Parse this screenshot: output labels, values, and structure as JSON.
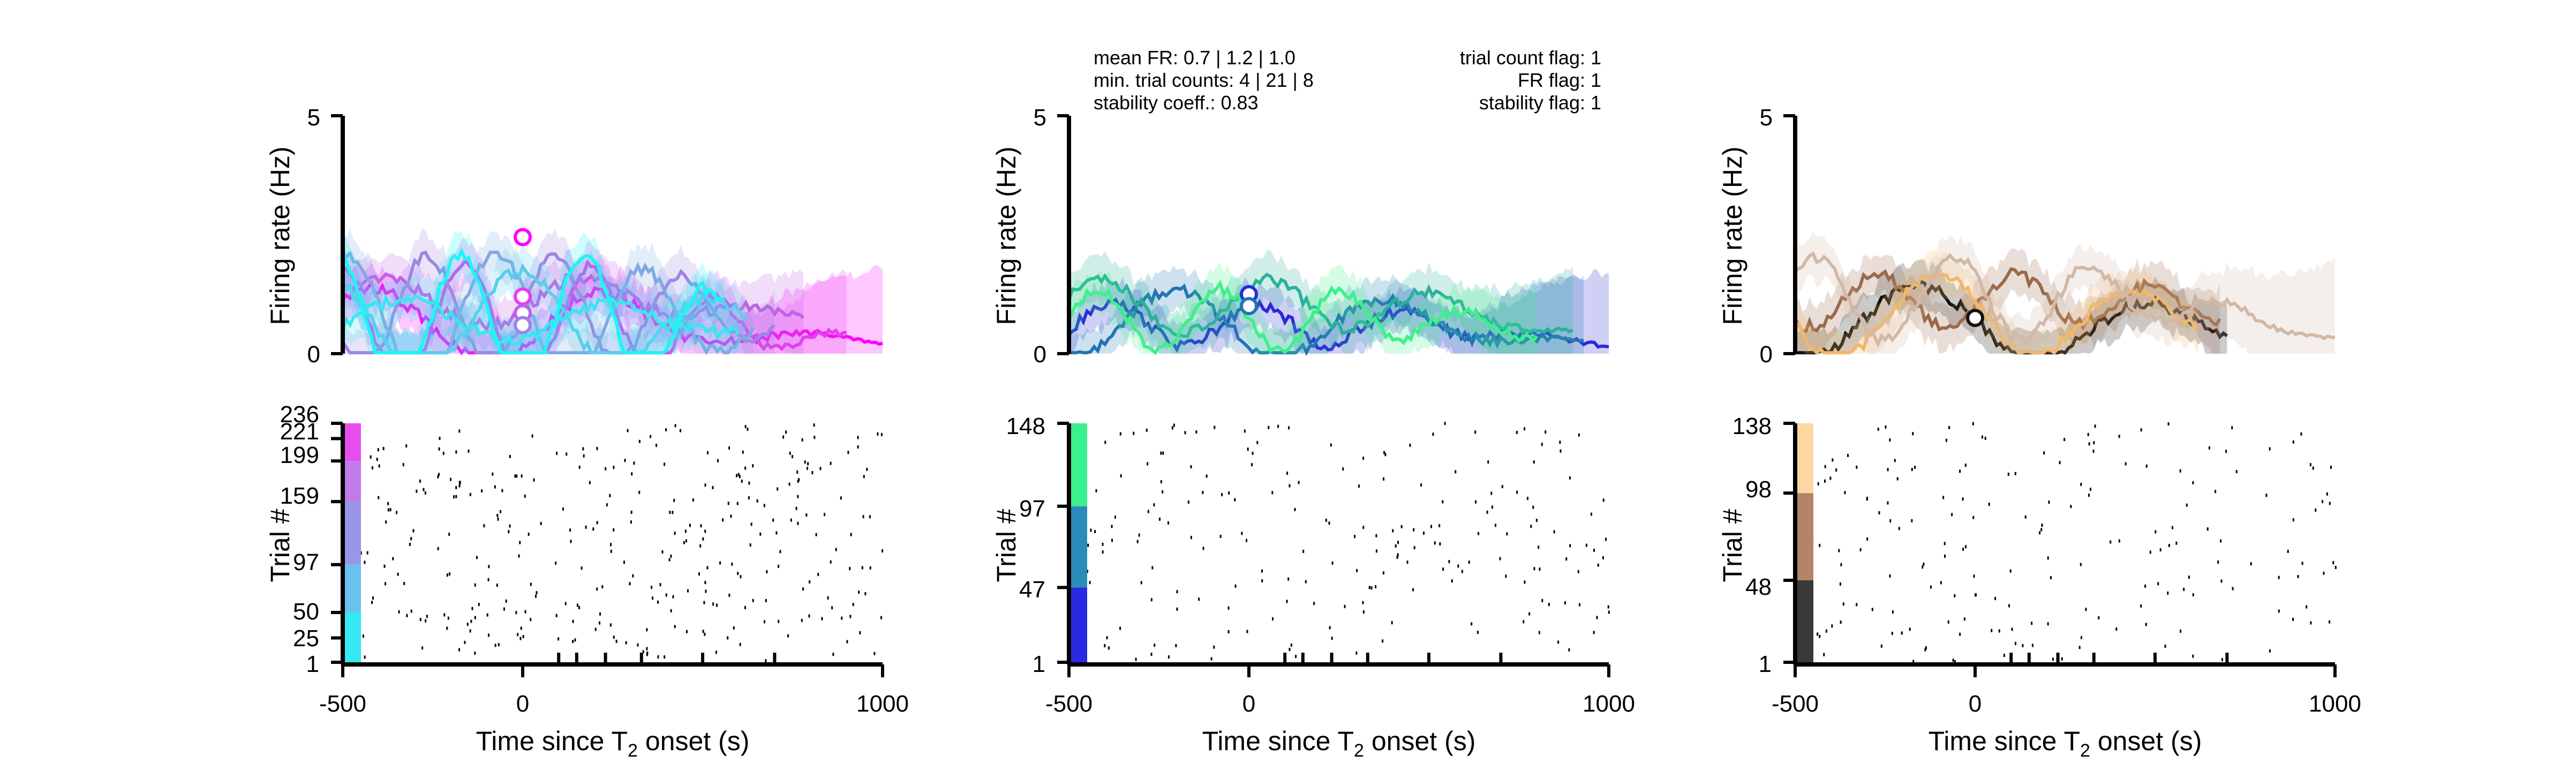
{
  "figure": {
    "x_axis": {
      "label_main": "Time since T",
      "label_sub": "2",
      "label_tail": " onset (s)",
      "ticks": [
        -500,
        0,
        1000
      ],
      "tick_labels": [
        "-500",
        "0",
        "1000"
      ],
      "minor_ticks": [
        100,
        150,
        230,
        330,
        500,
        700
      ],
      "xlim": [
        -500,
        1000
      ]
    },
    "psth_ylabel": "Firing rate (Hz)",
    "raster_ylabel": "Trial #",
    "stats_left": [
      "mean FR: 0.7 | 1.2 | 1.0",
      "min. trial counts: 4 | 21 | 8",
      "stability coeff.: 0.83"
    ],
    "stats_right": [
      "trial count flag: 1",
      "FR flag: 1",
      "stability flag: 1"
    ]
  },
  "chart_data": [
    {
      "type": "line",
      "panel": "psth",
      "column": 1,
      "ylim": [
        0,
        5
      ],
      "yticks": [
        0,
        5
      ],
      "ytick_labels": [
        "0",
        "5"
      ],
      "colors": [
        "#ff00ff",
        "#e63cf0",
        "#c060e8",
        "#9f84e3",
        "#7eaae3",
        "#5cccee",
        "#3ae6f0",
        "#1cf6f4"
      ],
      "markers": [
        {
          "x": 0,
          "y": 2.45
        },
        {
          "x": 0,
          "y": 1.2
        },
        {
          "x": 0,
          "y": 0.85
        },
        {
          "x": 0,
          "y": 0.6
        }
      ]
    },
    {
      "type": "scatter",
      "panel": "raster",
      "column": 1,
      "ylim": [
        1,
        236
      ],
      "yticks": [
        1,
        25,
        50,
        97,
        159,
        199,
        221,
        236
      ],
      "ytick_labels": [
        "1",
        "25",
        "50",
        "97",
        "159",
        "199",
        "221",
        "236"
      ],
      "condition_bands": [
        {
          "from": 1,
          "to": 50,
          "color": "#34e9f2"
        },
        {
          "from": 50,
          "to": 97,
          "color": "#6bc1ee"
        },
        {
          "from": 97,
          "to": 159,
          "color": "#9c94e9"
        },
        {
          "from": 159,
          "to": 199,
          "color": "#c07ae9"
        },
        {
          "from": 199,
          "to": 236,
          "color": "#e84ded"
        }
      ]
    },
    {
      "type": "line",
      "panel": "psth",
      "column": 2,
      "ylim": [
        0,
        5
      ],
      "yticks": [
        0,
        5
      ],
      "ytick_labels": [
        "0",
        "5"
      ],
      "colors": [
        "#2a2bd6",
        "#2275b4",
        "#2ab19a",
        "#3ef08a"
      ],
      "markers": [
        {
          "x": 0,
          "y": 1.25
        },
        {
          "x": 0,
          "y": 1.0
        }
      ]
    },
    {
      "type": "scatter",
      "panel": "raster",
      "column": 2,
      "ylim": [
        1,
        148
      ],
      "yticks": [
        1,
        47,
        97,
        148
      ],
      "ytick_labels": [
        "1",
        "47",
        "97",
        "148"
      ],
      "condition_bands": [
        {
          "from": 1,
          "to": 47,
          "color": "#2929e0"
        },
        {
          "from": 47,
          "to": 97,
          "color": "#2b8cba"
        },
        {
          "from": 97,
          "to": 148,
          "color": "#3af08c"
        }
      ]
    },
    {
      "type": "line",
      "panel": "psth",
      "column": 3,
      "ylim": [
        0,
        5
      ],
      "yticks": [
        0,
        5
      ],
      "ytick_labels": [
        "0",
        "5"
      ],
      "colors": [
        "#111111",
        "#9a6a4a",
        "#f2b86a",
        "#d2b8a6"
      ],
      "markers": [
        {
          "x": 0,
          "y": 0.75
        }
      ]
    },
    {
      "type": "scatter",
      "panel": "raster",
      "column": 3,
      "ylim": [
        1,
        138
      ],
      "yticks": [
        1,
        48,
        98,
        138
      ],
      "ytick_labels": [
        "1",
        "48",
        "98",
        "138"
      ],
      "condition_bands": [
        {
          "from": 1,
          "to": 48,
          "color": "#3a3a3a"
        },
        {
          "from": 48,
          "to": 98,
          "color": "#b38566"
        },
        {
          "from": 98,
          "to": 138,
          "color": "#fdd6a3"
        }
      ]
    }
  ]
}
